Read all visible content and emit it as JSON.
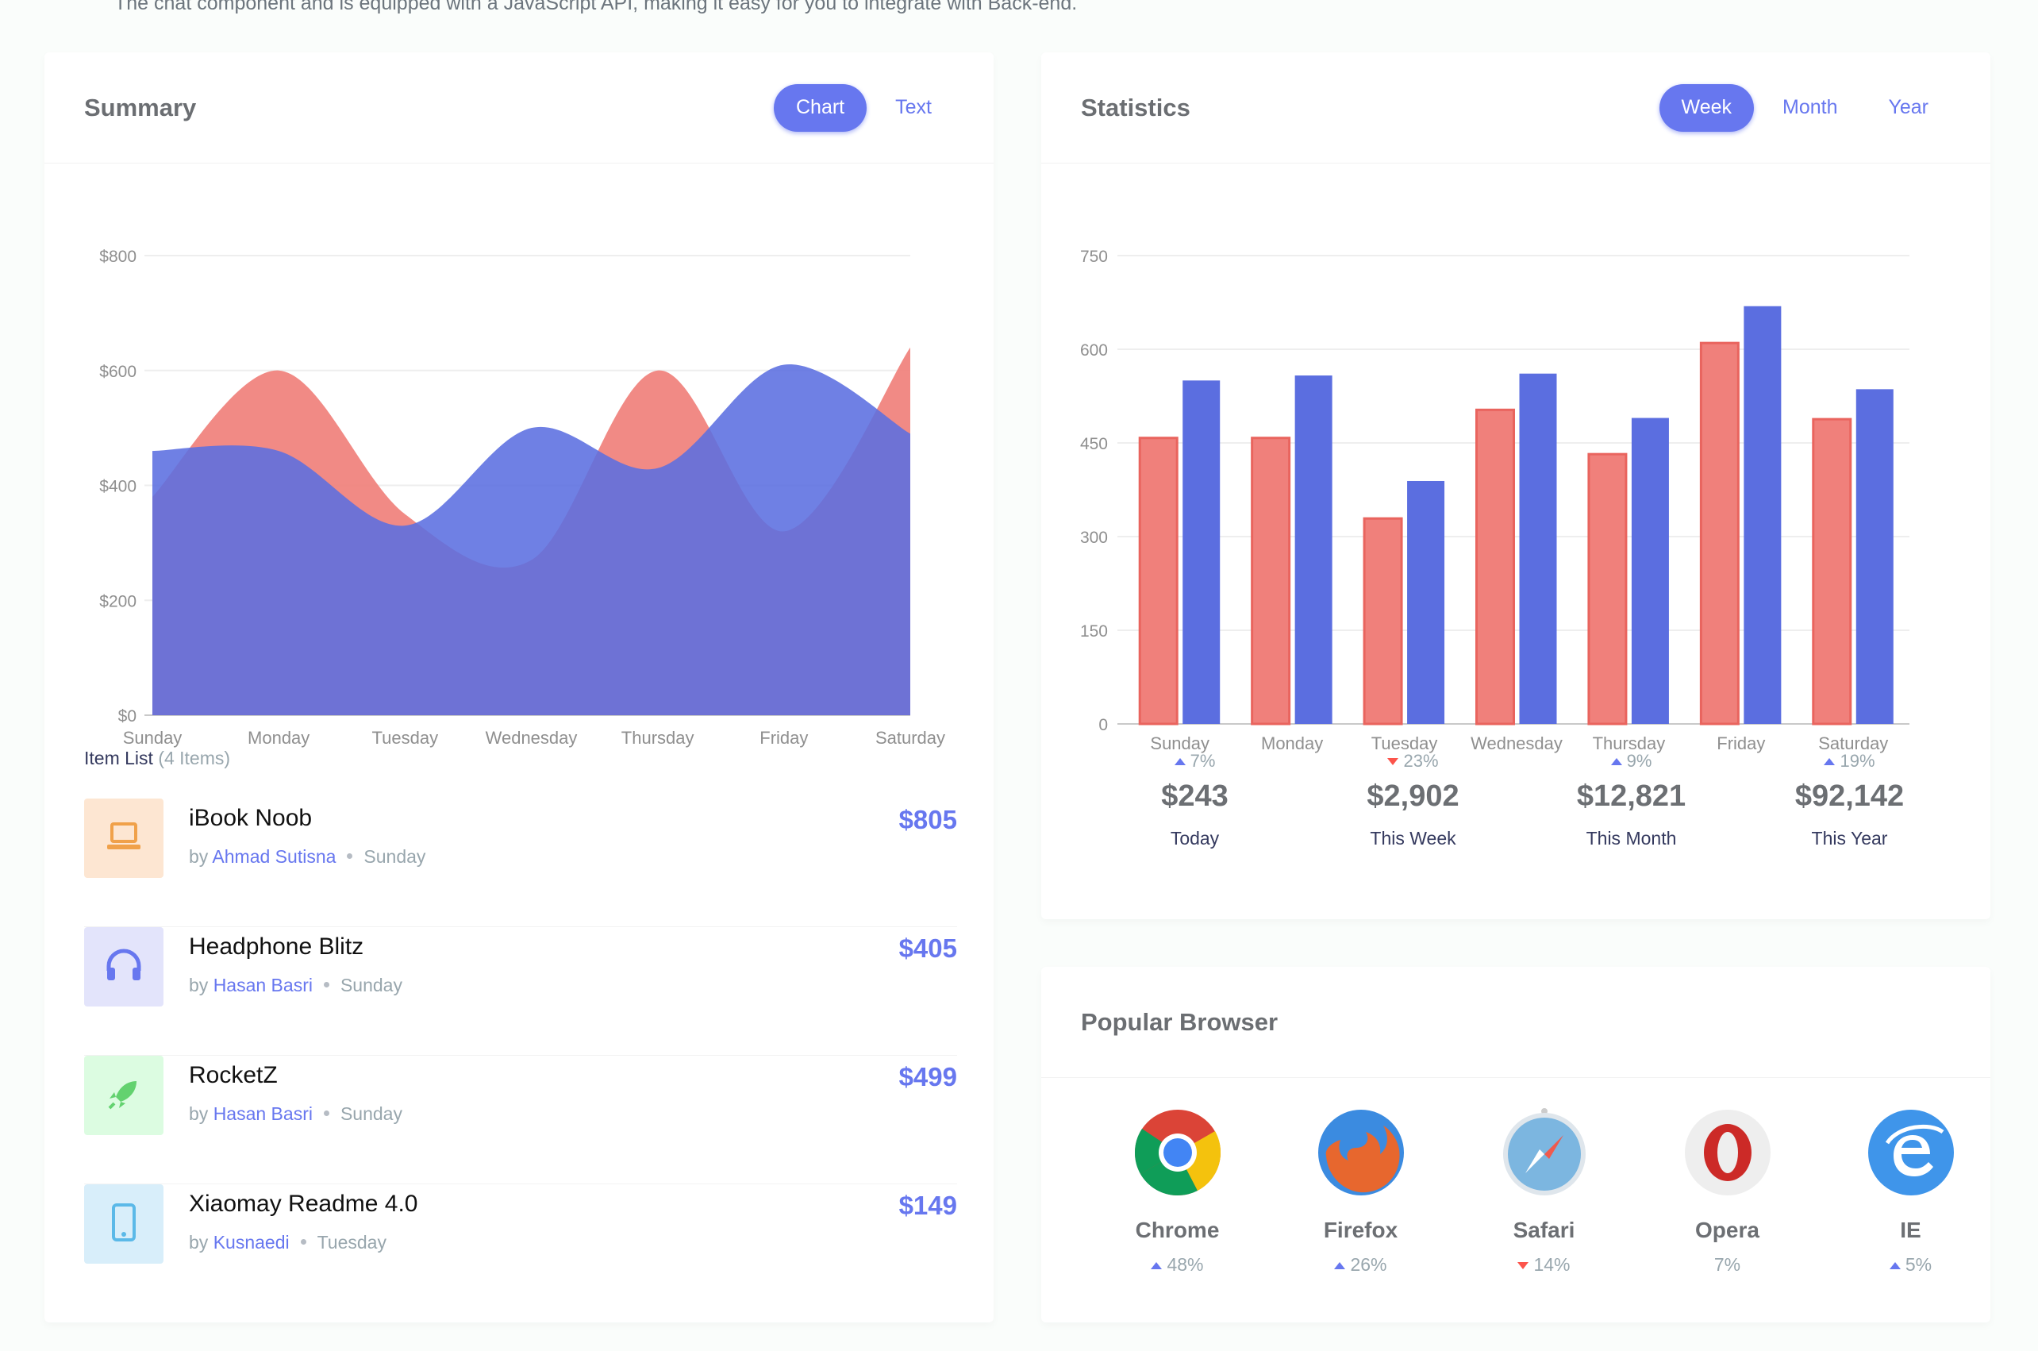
{
  "intro": "The chat component and is equipped with a JavaScript API, making it easy for you to integrate with Back-end.",
  "colors": {
    "primary": "#6777ef",
    "red": "#fc544b",
    "area_red": "#f0807b",
    "area_blue": "#5b6ee0"
  },
  "summary": {
    "title": "Summary",
    "tabs": [
      "Chart",
      "Text"
    ],
    "active_tab": "Chart",
    "chart_data": {
      "type": "area",
      "categories": [
        "Sunday",
        "Monday",
        "Tuesday",
        "Wednesday",
        "Thursday",
        "Friday",
        "Saturday"
      ],
      "y_ticks": [
        "$0",
        "$200",
        "$400",
        "$600",
        "$800"
      ],
      "ylim": [
        0,
        800
      ],
      "series": [
        {
          "values": [
            380,
            600,
            350,
            270,
            600,
            320,
            640
          ],
          "color": "#f0807b"
        },
        {
          "values": [
            460,
            460,
            330,
            500,
            430,
            610,
            490
          ],
          "color": "#5b6ee0"
        }
      ]
    },
    "item_list_title": "Item List",
    "item_list_count": "(4 Items)",
    "items": [
      {
        "name": "iBook Noob",
        "by": "by",
        "author": "Ahmad Sutisna",
        "day": "Sunday",
        "price": "$805",
        "icon": "laptop-icon",
        "bg": "#fde6d2",
        "fg": "#f0a14a"
      },
      {
        "name": "Headphone Blitz",
        "by": "by",
        "author": "Hasan Basri",
        "day": "Sunday",
        "price": "$405",
        "icon": "headphones-icon",
        "bg": "#e3e4fb",
        "fg": "#6777ef"
      },
      {
        "name": "RocketZ",
        "by": "by",
        "author": "Hasan Basri",
        "day": "Sunday",
        "price": "$499",
        "icon": "rocket-icon",
        "bg": "#dcfce1",
        "fg": "#63d26f"
      },
      {
        "name": "Xiaomay Readme 4.0",
        "by": "by",
        "author": "Kusnaedi",
        "day": "Tuesday",
        "price": "$149",
        "icon": "mobile-icon",
        "bg": "#d8eefa",
        "fg": "#5bb9e8"
      }
    ]
  },
  "statistics": {
    "title": "Statistics",
    "tabs": [
      "Week",
      "Month",
      "Year"
    ],
    "active_tab": "Week",
    "chart_data": {
      "type": "bar",
      "categories": [
        "Sunday",
        "Monday",
        "Tuesday",
        "Wednesday",
        "Thursday",
        "Friday",
        "Saturday"
      ],
      "y_ticks": [
        "0",
        "150",
        "300",
        "450",
        "600",
        "750"
      ],
      "ylim": [
        0,
        750
      ],
      "series": [
        {
          "values": [
            458,
            458,
            329,
            503,
            432,
            610,
            488
          ],
          "color": "#f0807b"
        },
        {
          "values": [
            550,
            558,
            389,
            561,
            490,
            669,
            536
          ],
          "color": "#5b6ee0"
        }
      ]
    },
    "stats": [
      {
        "change": "7%",
        "dir": "up",
        "value": "$243",
        "label": "Today"
      },
      {
        "change": "23%",
        "dir": "down",
        "value": "$2,902",
        "label": "This Week"
      },
      {
        "change": "9%",
        "dir": "up",
        "value": "$12,821",
        "label": "This Month"
      },
      {
        "change": "19%",
        "dir": "up",
        "value": "$92,142",
        "label": "This Year"
      }
    ]
  },
  "browsers": {
    "title": "Popular Browser",
    "list": [
      {
        "name": "Chrome",
        "share": "48%",
        "dir": "up",
        "icon": "chrome-icon"
      },
      {
        "name": "Firefox",
        "share": "26%",
        "dir": "up",
        "icon": "firefox-icon"
      },
      {
        "name": "Safari",
        "share": "14%",
        "dir": "down",
        "icon": "safari-icon"
      },
      {
        "name": "Opera",
        "share": "7%",
        "dir": "none",
        "icon": "opera-icon"
      },
      {
        "name": "IE",
        "share": "5%",
        "dir": "up",
        "icon": "ie-icon"
      }
    ]
  }
}
